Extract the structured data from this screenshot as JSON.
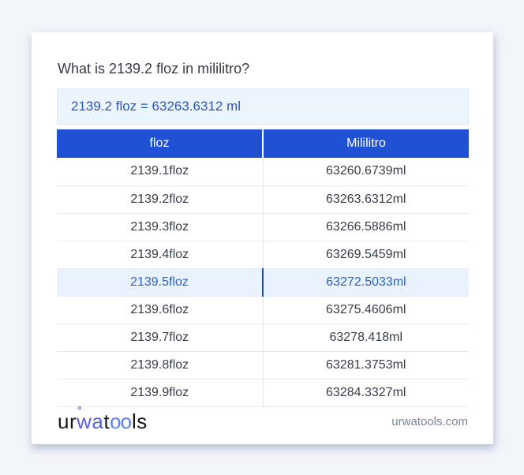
{
  "title": "What is 2139.2 floz in mililitro?",
  "result": "2139.2 floz = 63263.6312 ml",
  "table": {
    "headers": [
      "floz",
      "Mililitro"
    ],
    "highlight_index": 4,
    "rows": [
      {
        "floz": "2139.1floz",
        "ml": "63260.6739ml"
      },
      {
        "floz": "2139.2floz",
        "ml": "63263.6312ml"
      },
      {
        "floz": "2139.3floz",
        "ml": "63266.5886ml"
      },
      {
        "floz": "2139.4floz",
        "ml": "63269.5459ml"
      },
      {
        "floz": "2139.5floz",
        "ml": "63272.5033ml"
      },
      {
        "floz": "2139.6floz",
        "ml": "63275.4606ml"
      },
      {
        "floz": "2139.7floz",
        "ml": "63278.418ml"
      },
      {
        "floz": "2139.8floz",
        "ml": "63281.3753ml"
      },
      {
        "floz": "2139.9floz",
        "ml": "63284.3327ml"
      }
    ]
  },
  "footer": {
    "logo": {
      "part1": "ur",
      "part2": "wa",
      "part3": "t",
      "part4": "oo",
      "part5": "ls"
    },
    "domain": "urwatools.com"
  },
  "colors": {
    "page_background": "#f2f5f9",
    "card_background": "#ffffff",
    "header_blue": "#2051d4",
    "result_box_background": "#ecf4fc",
    "result_text_blue": "#2b57c5",
    "highlight_row_background": "#e9f2fd",
    "highlight_text_blue": "#2a62c8",
    "highlight_divider_blue": "#1d509f",
    "logo_dark": "#15171b",
    "logo_purple": "#5a5ee8",
    "logo_blue": "#5b80f2",
    "domain_gray": "#7b8595"
  }
}
